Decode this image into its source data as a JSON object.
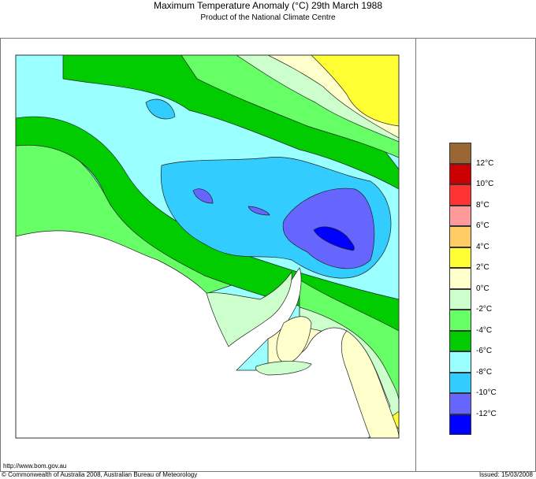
{
  "title": "Maximum Temperature Anomaly (°C)  29th March 1988",
  "subtitle": "Product of the National Climate Centre",
  "legend": [
    {
      "label": "",
      "color": "#996633"
    },
    {
      "label": "12°C",
      "color": "#cc0000"
    },
    {
      "label": "10°C",
      "color": "#ff3333"
    },
    {
      "label": "8°C",
      "color": "#ff9999"
    },
    {
      "label": "6°C",
      "color": "#ffcc66"
    },
    {
      "label": "4°C",
      "color": "#ffff33"
    },
    {
      "label": "2°C",
      "color": "#ffffcc"
    },
    {
      "label": "0°C",
      "color": "#ccffcc"
    },
    {
      "label": "-2°C",
      "color": "#66ff66"
    },
    {
      "label": "-4°C",
      "color": "#00cc00"
    },
    {
      "label": "-6°C",
      "color": "#99ffff"
    },
    {
      "label": "-8°C",
      "color": "#33ccff"
    },
    {
      "label": "-10°C",
      "color": "#6666ff"
    },
    {
      "label": "-12°C",
      "color": "#0000ff"
    }
  ],
  "footer": {
    "url": "http://www.bom.gov.au",
    "copyright": "© Commonwealth of Australia 2008, Australian Bureau of Meteorology",
    "issued": "Issued: 15/03/2008"
  }
}
